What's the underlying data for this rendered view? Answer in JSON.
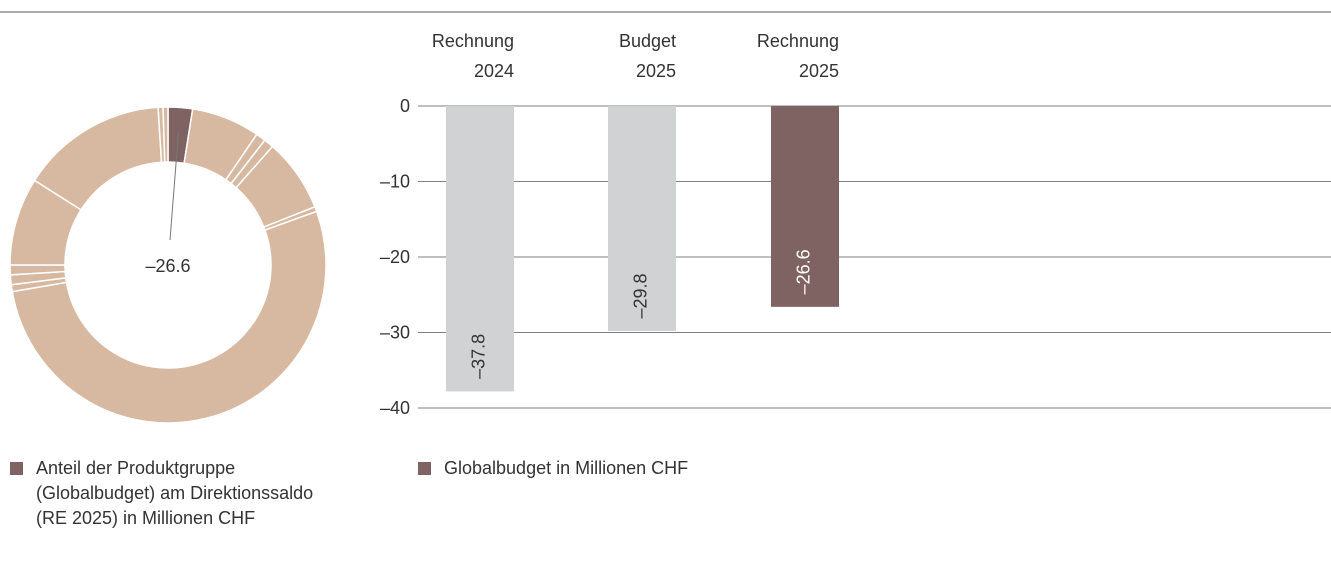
{
  "chart_data": [
    {
      "type": "donut",
      "annotation": "–26.6",
      "values": [
        2.5,
        7,
        1,
        1,
        7.5,
        0.5,
        52.8,
        0.7,
        1,
        1,
        9,
        15,
        0.5,
        0.5
      ],
      "colors": [
        "#7f6262",
        "#d6b9a0",
        "#d6b9a0",
        "#d6b9a0",
        "#d6b9a0",
        "#d6b9a0",
        "#d6b9a0",
        "#d6b9a0",
        "#d6b9a0",
        "#d6b9a0",
        "#d6b9a0",
        "#d6b9a0",
        "#d6b9a0",
        "#d6b9a0"
      ],
      "legend": {
        "name": "Anteil der Produktgruppe (Globalbudget) am Direktionssaldo (RE 2025) in Millionen CHF",
        "color": "#7f6262"
      }
    },
    {
      "type": "bar",
      "categories": [
        "Rechnung\n2024",
        "Budget\n2025",
        "Rechnung\n2025"
      ],
      "values": [
        -37.8,
        -29.8,
        -26.6
      ],
      "value_labels": [
        "–37.8",
        "–29.8",
        "–26.6"
      ],
      "colors": [
        "#d1d2d4",
        "#d1d2d4",
        "#7f6262"
      ],
      "ylim": [
        -40,
        0
      ],
      "yticks": [
        0,
        {
          "value": -10,
          "label": "–10"
        },
        {
          "value": -20,
          "label": "–20"
        },
        {
          "value": -30,
          "label": "–30"
        },
        {
          "value": -40,
          "label": "–40"
        }
      ],
      "grid": true,
      "legend": {
        "name": "Globalbudget in Millionen CHF",
        "color": "#7f6262"
      }
    }
  ]
}
